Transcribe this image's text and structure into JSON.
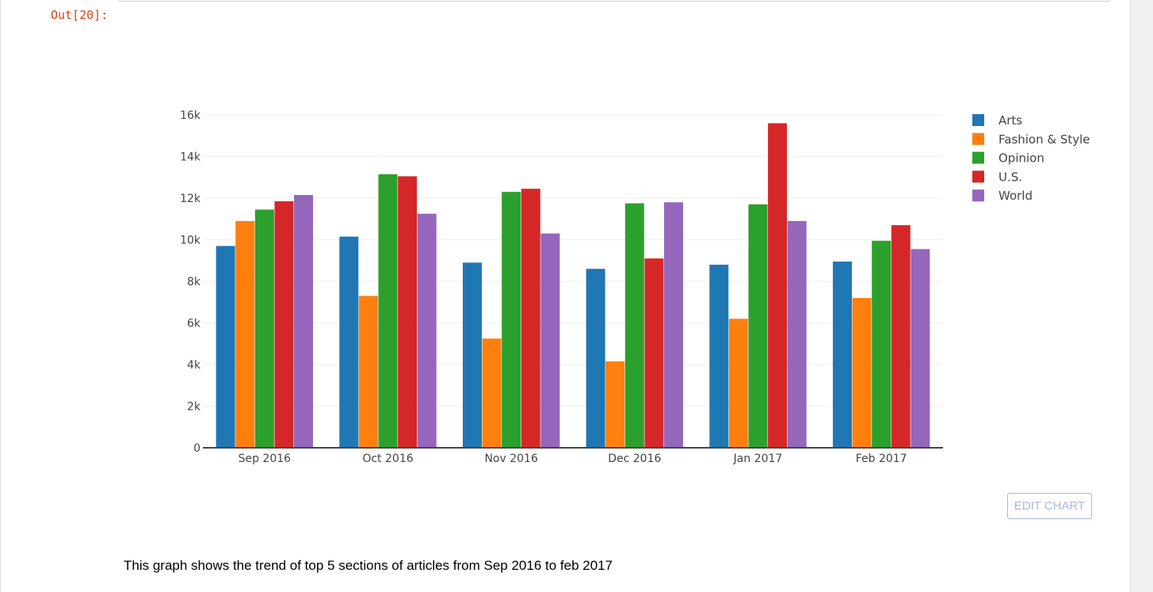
{
  "cell": {
    "out_prompt": "Out[20]:",
    "edit_chart_label": "EDIT CHART",
    "caption": "This graph shows the trend of top 5 sections of articles from Sep 2016 to feb 2017"
  },
  "chart_data": {
    "type": "bar",
    "categories": [
      "Sep 2016",
      "Oct 2016",
      "Nov 2016",
      "Dec 2016",
      "Jan 2017",
      "Feb 2017"
    ],
    "series": [
      {
        "name": "Arts",
        "color": "#1f77b4",
        "values": [
          9700,
          10150,
          8900,
          8600,
          8800,
          8950
        ]
      },
      {
        "name": "Fashion & Style",
        "color": "#ff7f0e",
        "values": [
          10900,
          7300,
          5250,
          4150,
          6200,
          7200
        ]
      },
      {
        "name": "Opinion",
        "color": "#2ca02c",
        "values": [
          11450,
          13150,
          12300,
          11750,
          11700,
          9950
        ]
      },
      {
        "name": "U.S.",
        "color": "#d62728",
        "values": [
          11850,
          13050,
          12450,
          9100,
          15600,
          10700
        ]
      },
      {
        "name": "World",
        "color": "#9467bd",
        "values": [
          12150,
          11250,
          10300,
          11800,
          10900,
          9550
        ]
      }
    ],
    "ylim": [
      0,
      16000
    ],
    "yticks": [
      0,
      2000,
      4000,
      6000,
      8000,
      10000,
      12000,
      14000,
      16000
    ],
    "ytick_labels": [
      "0",
      "2k",
      "4k",
      "6k",
      "8k",
      "10k",
      "12k",
      "14k",
      "16k"
    ],
    "grid": true,
    "legend_position": "top-right"
  }
}
